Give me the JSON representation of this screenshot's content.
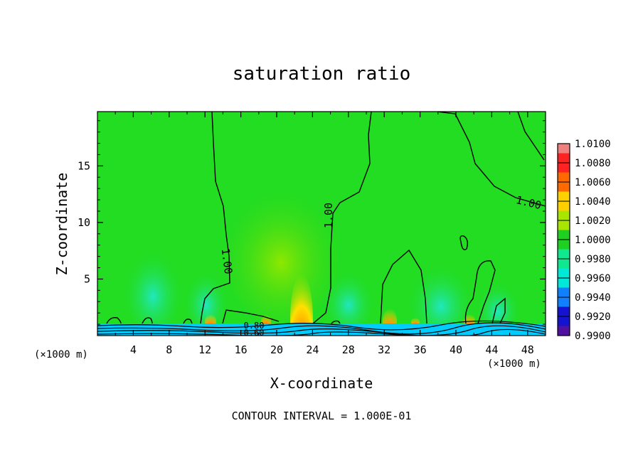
{
  "chart_data": {
    "type": "heatmap",
    "title": "saturation ratio",
    "xlabel": "X-coordinate",
    "ylabel": "Z-coordinate",
    "x_unit_label": "(×1000 m)",
    "footer": "CONTOUR INTERVAL = 1.000E-01",
    "xlim": [
      0,
      50
    ],
    "ylim": [
      0,
      19.8
    ],
    "x_ticks": [
      "4",
      "8",
      "12",
      "16",
      "20",
      "24",
      "28",
      "32",
      "36",
      "40",
      "44",
      "48"
    ],
    "x_tick_values": [
      4,
      8,
      12,
      16,
      20,
      24,
      28,
      32,
      36,
      40,
      44,
      48
    ],
    "y_ticks": [
      "5",
      "10",
      "15"
    ],
    "y_tick_values": [
      5,
      10,
      15
    ],
    "colorbar": {
      "labels": [
        "1.0100",
        "1.0080",
        "1.0060",
        "1.0040",
        "1.0020",
        "1.0000",
        "0.9980",
        "0.9960",
        "0.9940",
        "0.9920",
        "0.9900"
      ],
      "levels": [
        1.01,
        1.008,
        1.006,
        1.004,
        1.002,
        1.0,
        0.998,
        0.996,
        0.994,
        0.992,
        0.99
      ],
      "colors": [
        "#f08080",
        "#ff2222",
        "#ff6a00",
        "#ffd000",
        "#a8e600",
        "#20d020",
        "#10e890",
        "#00e8d8",
        "#1080ff",
        "#1414d0",
        "#5010a0"
      ]
    },
    "contour_labels": [
      "1.00",
      "1.00",
      "1.00",
      "0.80",
      "0.60"
    ],
    "background_color": "#22dd22",
    "surface_color": "#00ccff"
  }
}
